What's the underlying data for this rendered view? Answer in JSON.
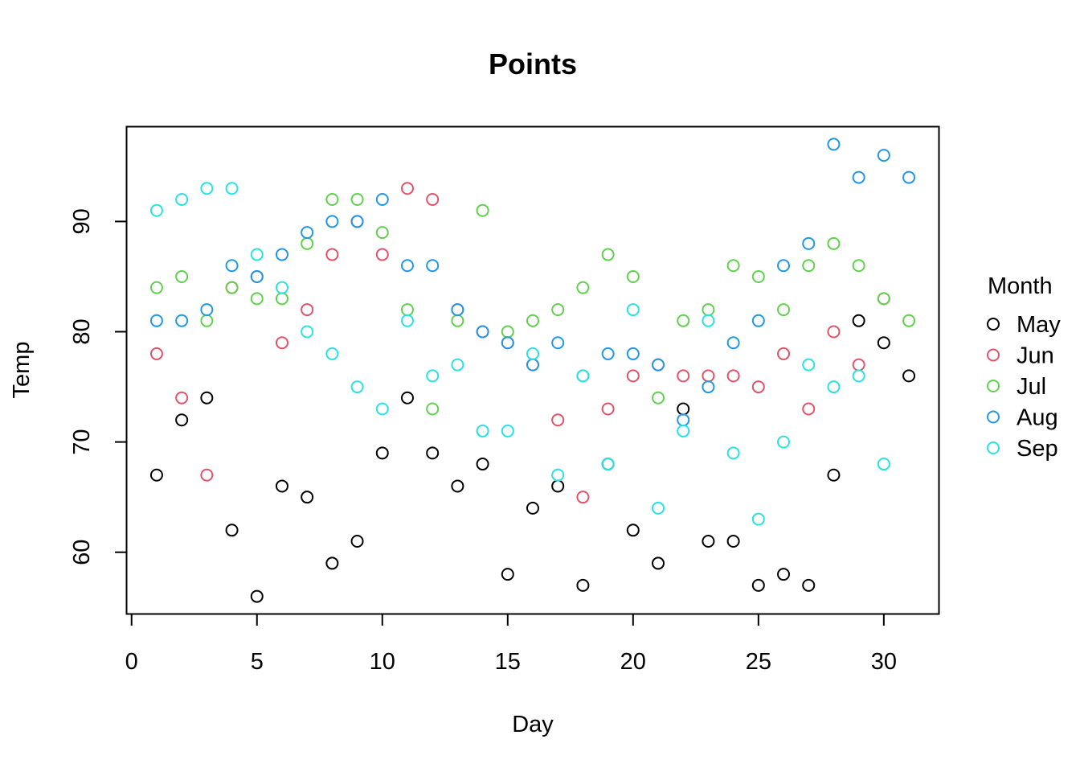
{
  "chart_data": {
    "type": "scatter",
    "title": "Points",
    "xlabel": "Day",
    "ylabel": "Temp",
    "xlim": [
      -0.2,
      32.2
    ],
    "ylim": [
      54.4,
      98.6
    ],
    "x_ticks": [
      0,
      5,
      10,
      15,
      20,
      25,
      30
    ],
    "y_ticks": [
      60,
      70,
      80,
      90
    ],
    "grid": false,
    "legend": {
      "title": "Month",
      "position": "right"
    },
    "series": [
      {
        "name": "May",
        "color": "#000000",
        "x": [
          1,
          2,
          3,
          4,
          5,
          6,
          7,
          8,
          9,
          10,
          11,
          12,
          13,
          14,
          15,
          16,
          17,
          18,
          19,
          20,
          21,
          22,
          23,
          24,
          25,
          26,
          27,
          28,
          29,
          30,
          31
        ],
        "y": [
          67,
          72,
          74,
          62,
          56,
          66,
          65,
          59,
          61,
          69,
          74,
          69,
          66,
          68,
          58,
          64,
          66,
          57,
          68,
          62,
          59,
          73,
          61,
          61,
          57,
          58,
          57,
          67,
          81,
          79,
          76
        ]
      },
      {
        "name": "Jun",
        "color": "#DF536B",
        "x": [
          1,
          2,
          3,
          4,
          5,
          6,
          7,
          8,
          9,
          10,
          11,
          12,
          13,
          14,
          15,
          16,
          17,
          18,
          19,
          20,
          21,
          22,
          23,
          24,
          25,
          26,
          27,
          28,
          29,
          30
        ],
        "y": [
          78,
          74,
          67,
          84,
          85,
          79,
          82,
          87,
          90,
          87,
          93,
          92,
          82,
          80,
          79,
          77,
          72,
          65,
          73,
          76,
          77,
          76,
          76,
          76,
          75,
          78,
          73,
          80,
          77,
          83
        ]
      },
      {
        "name": "Jul",
        "color": "#61D04F",
        "x": [
          1,
          2,
          3,
          4,
          5,
          6,
          7,
          8,
          9,
          10,
          11,
          12,
          13,
          14,
          15,
          16,
          17,
          18,
          19,
          20,
          21,
          22,
          23,
          24,
          25,
          26,
          27,
          28,
          29,
          30,
          31
        ],
        "y": [
          84,
          85,
          81,
          84,
          83,
          83,
          88,
          92,
          92,
          89,
          82,
          73,
          81,
          91,
          80,
          81,
          82,
          84,
          87,
          85,
          74,
          81,
          82,
          86,
          85,
          82,
          86,
          88,
          86,
          83,
          81
        ]
      },
      {
        "name": "Aug",
        "color": "#2297E6",
        "x": [
          1,
          2,
          3,
          4,
          5,
          6,
          7,
          8,
          9,
          10,
          11,
          12,
          13,
          14,
          15,
          16,
          17,
          18,
          19,
          20,
          21,
          22,
          23,
          24,
          25,
          26,
          27,
          28,
          29,
          30,
          31
        ],
        "y": [
          81,
          81,
          82,
          86,
          85,
          87,
          89,
          90,
          90,
          92,
          86,
          86,
          82,
          80,
          79,
          77,
          79,
          76,
          78,
          78,
          77,
          72,
          75,
          79,
          81,
          86,
          88,
          97,
          94,
          96,
          94
        ]
      },
      {
        "name": "Sep",
        "color": "#28E2E5",
        "x": [
          1,
          2,
          3,
          4,
          5,
          6,
          7,
          8,
          9,
          10,
          11,
          12,
          13,
          14,
          15,
          16,
          17,
          18,
          19,
          20,
          21,
          22,
          23,
          24,
          25,
          26,
          27,
          28,
          29,
          30
        ],
        "y": [
          91,
          92,
          93,
          93,
          87,
          84,
          80,
          78,
          75,
          73,
          81,
          76,
          77,
          71,
          71,
          78,
          67,
          76,
          68,
          82,
          64,
          71,
          81,
          69,
          63,
          70,
          77,
          75,
          76,
          68
        ]
      }
    ]
  }
}
